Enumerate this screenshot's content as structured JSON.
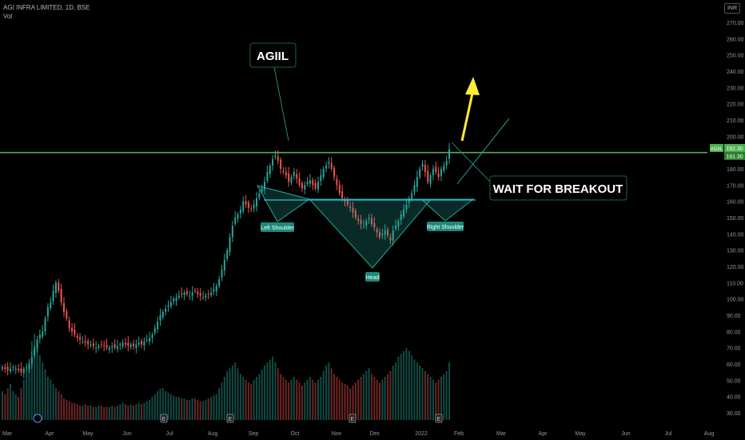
{
  "header": {
    "symbol_line": "AGI INFRA LIMITED, 1D, BSE",
    "volume_label": "Vol",
    "currency": "INR"
  },
  "chart_data": {
    "type": "candlestick",
    "title": "AGI INFRA LIMITED, 1D, BSE",
    "price_axis": {
      "ticks": [
        30,
        40,
        50,
        60,
        70,
        80,
        90,
        100,
        110,
        120,
        130,
        140,
        150,
        160,
        170,
        180,
        190,
        200,
        210,
        220,
        230,
        240,
        250,
        260,
        270
      ],
      "tick_labels": [
        "30.00",
        "40.00",
        "50.00",
        "60.00",
        "70.00",
        "80.00",
        "90.00",
        "100.00",
        "110.00",
        "120.00",
        "130.00",
        "140.00",
        "150.00",
        "160.00",
        "170.00",
        "180.00",
        "190.00",
        "200.00",
        "210.00",
        "220.00",
        "230.00",
        "240.00",
        "250.00",
        "260.00",
        "270.00"
      ],
      "range": [
        25,
        272
      ]
    },
    "time_axis": {
      "labels": [
        "Mar",
        "Apr",
        "May",
        "Jun",
        "Jul",
        "Aug",
        "Sep",
        "Oct",
        "Nov",
        "Dec",
        "2022",
        "Feb",
        "Mar",
        "Apr",
        "May",
        "Jun",
        "Jul",
        "Aug"
      ]
    },
    "last_price": {
      "symbol": "AGIIL",
      "value": "192.30",
      "secondary": "191.30"
    },
    "close_series": [
      58,
      57,
      56,
      57,
      58,
      57,
      56,
      55,
      57,
      58,
      60,
      64,
      70,
      75,
      78,
      80,
      88,
      95,
      98,
      105,
      110,
      105,
      98,
      92,
      88,
      82,
      80,
      78,
      76,
      75,
      74,
      73,
      72,
      72,
      71,
      70,
      71,
      72,
      71,
      70,
      70,
      71,
      70,
      71,
      72,
      73,
      72,
      71,
      72,
      71,
      72,
      73,
      72,
      74,
      75,
      76,
      78,
      82,
      86,
      90,
      92,
      94,
      96,
      98,
      100,
      101,
      102,
      103,
      104,
      103,
      102,
      104,
      105,
      103,
      102,
      101,
      102,
      103,
      104,
      106,
      108,
      112,
      118,
      124,
      130,
      138,
      145,
      150,
      152,
      155,
      160,
      158,
      156,
      155,
      158,
      162,
      165,
      168,
      172,
      178,
      182,
      186,
      188,
      185,
      180,
      178,
      176,
      172,
      175,
      178,
      174,
      170,
      168,
      170,
      172,
      173,
      170,
      168,
      172,
      176,
      180,
      182,
      184,
      180,
      175,
      170,
      165,
      162,
      160,
      158,
      156,
      153,
      150,
      148,
      146,
      145,
      148,
      150,
      146,
      144,
      141,
      138,
      140,
      142,
      139,
      136,
      142,
      145,
      148,
      152,
      155,
      158,
      162,
      165,
      170,
      175,
      180,
      183,
      178,
      172,
      176,
      180,
      178,
      175,
      180,
      182,
      185,
      192
    ],
    "volume_series": [
      20,
      18,
      22,
      25,
      20,
      18,
      16,
      22,
      28,
      35,
      40,
      55,
      60,
      50,
      45,
      40,
      35,
      30,
      28,
      25,
      22,
      20,
      18,
      15,
      14,
      13,
      12,
      12,
      11,
      10,
      10,
      11,
      10,
      10,
      9,
      9,
      10,
      10,
      9,
      9,
      9,
      10,
      9,
      10,
      11,
      12,
      11,
      10,
      11,
      10,
      11,
      12,
      11,
      12,
      13,
      14,
      16,
      18,
      20,
      22,
      22,
      20,
      19,
      18,
      17,
      16,
      16,
      15,
      15,
      14,
      14,
      15,
      15,
      14,
      13,
      13,
      14,
      15,
      16,
      17,
      18,
      22,
      26,
      30,
      34,
      36,
      38,
      40,
      36,
      32,
      30,
      28,
      26,
      25,
      28,
      30,
      32,
      35,
      38,
      40,
      42,
      44,
      40,
      36,
      32,
      30,
      28,
      26,
      28,
      30,
      28,
      26,
      24,
      26,
      28,
      30,
      28,
      26,
      28,
      30,
      34,
      38,
      40,
      36,
      32,
      30,
      28,
      26,
      25,
      24,
      22,
      24,
      26,
      28,
      30,
      32,
      34,
      36,
      32,
      30,
      28,
      26,
      28,
      30,
      32,
      34,
      38,
      40,
      44,
      46,
      48,
      50,
      48,
      45,
      42,
      40,
      38,
      36,
      34,
      32,
      30,
      28,
      26,
      28,
      30,
      32,
      34,
      40
    ],
    "annotations": {
      "symbol_callout": "AGIIL",
      "breakout_callout": "WAIT FOR BREAKOUT",
      "left_shoulder": "Left Shoulder",
      "head": "Head",
      "right_shoulder": "Right Shoulder",
      "resistance_level": 190,
      "neckline_level": 157
    },
    "colors": {
      "up": "#26a69a",
      "down": "#ef5350",
      "resistance": "#4caf50",
      "neckline": "#26c6da",
      "pattern_fill": "#26a69a",
      "arrow": "#ffeb3b",
      "label_bg": "#1b8a7a"
    }
  }
}
